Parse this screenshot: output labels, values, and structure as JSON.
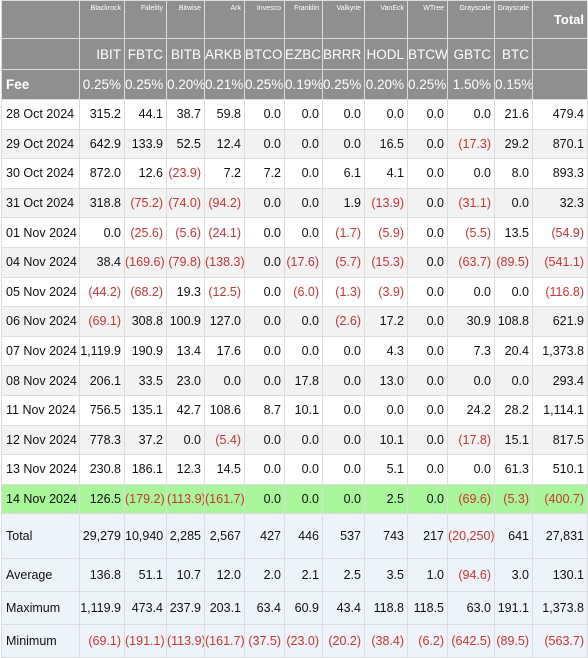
{
  "issuers": [
    "Blackrock",
    "Fidelity",
    "Bitwise",
    "Ark",
    "Invesco",
    "Franklin",
    "Valkyrie",
    "VanEck",
    "WTree",
    "Grayscale",
    "Grayscale"
  ],
  "total_label": "Total",
  "tickers": [
    "IBIT",
    "FBTC",
    "BITB",
    "ARKB",
    "BTCO",
    "EZBC",
    "BRRR",
    "HODL",
    "BTCW",
    "GBTC",
    "BTC"
  ],
  "fee": {
    "label": "Fee",
    "values": [
      "0.25%",
      "0.25%",
      "0.20%",
      "0.21%",
      "0.25%",
      "0.19%",
      "0.25%",
      "0.20%",
      "0.25%",
      "1.50%",
      "0.15%"
    ]
  },
  "rows": [
    {
      "date": "28 Oct 2024",
      "values": [
        "315.2",
        "44.1",
        "38.7",
        "59.8",
        "0.0",
        "0.0",
        "0.0",
        "0.0",
        "0.0",
        "0.0",
        "21.6",
        "479.4"
      ]
    },
    {
      "date": "29 Oct 2024",
      "values": [
        "642.9",
        "133.9",
        "52.5",
        "12.4",
        "0.0",
        "0.0",
        "0.0",
        "16.5",
        "0.0",
        "(17.3)",
        "29.2",
        "870.1"
      ]
    },
    {
      "date": "30 Oct 2024",
      "values": [
        "872.0",
        "12.6",
        "(23.9)",
        "7.2",
        "7.2",
        "0.0",
        "6.1",
        "4.1",
        "0.0",
        "0.0",
        "8.0",
        "893.3"
      ]
    },
    {
      "date": "31 Oct 2024",
      "values": [
        "318.8",
        "(75.2)",
        "(74.0)",
        "(94.2)",
        "0.0",
        "0.0",
        "1.9",
        "(13.9)",
        "0.0",
        "(31.1)",
        "0.0",
        "32.3"
      ]
    },
    {
      "date": "01 Nov 2024",
      "values": [
        "0.0",
        "(25.6)",
        "(5.6)",
        "(24.1)",
        "0.0",
        "0.0",
        "(1.7)",
        "(5.9)",
        "0.0",
        "(5.5)",
        "13.5",
        "(54.9)"
      ]
    },
    {
      "date": "04 Nov 2024",
      "values": [
        "38.4",
        "(169.6)",
        "(79.8)",
        "(138.3)",
        "0.0",
        "(17.6)",
        "(5.7)",
        "(15.3)",
        "0.0",
        "(63.7)",
        "(89.5)",
        "(541.1)"
      ]
    },
    {
      "date": "05 Nov 2024",
      "values": [
        "(44.2)",
        "(68.2)",
        "19.3",
        "(12.5)",
        "0.0",
        "(6.0)",
        "(1.3)",
        "(3.9)",
        "0.0",
        "0.0",
        "0.0",
        "(116.8)"
      ]
    },
    {
      "date": "06 Nov 2024",
      "values": [
        "(69.1)",
        "308.8",
        "100.9",
        "127.0",
        "0.0",
        "0.0",
        "(2.6)",
        "17.2",
        "0.0",
        "30.9",
        "108.8",
        "621.9"
      ]
    },
    {
      "date": "07 Nov 2024",
      "values": [
        "1,119.9",
        "190.9",
        "13.4",
        "17.6",
        "0.0",
        "0.0",
        "0.0",
        "4.3",
        "0.0",
        "7.3",
        "20.4",
        "1,373.8"
      ]
    },
    {
      "date": "08 Nov 2024",
      "values": [
        "206.1",
        "33.5",
        "23.0",
        "0.0",
        "0.0",
        "17.8",
        "0.0",
        "13.0",
        "0.0",
        "0.0",
        "0.0",
        "293.4"
      ]
    },
    {
      "date": "11 Nov 2024",
      "values": [
        "756.5",
        "135.1",
        "42.7",
        "108.6",
        "8.7",
        "10.1",
        "0.0",
        "0.0",
        "0.0",
        "24.2",
        "28.2",
        "1,114.1"
      ]
    },
    {
      "date": "12 Nov 2024",
      "values": [
        "778.3",
        "37.2",
        "0.0",
        "(5.4)",
        "0.0",
        "0.0",
        "0.0",
        "10.1",
        "0.0",
        "(17.8)",
        "15.1",
        "817.5"
      ]
    },
    {
      "date": "13 Nov 2024",
      "values": [
        "230.8",
        "186.1",
        "12.3",
        "14.5",
        "0.0",
        "0.0",
        "0.0",
        "5.1",
        "0.0",
        "0.0",
        "61.3",
        "510.1"
      ]
    },
    {
      "date": "14 Nov 2024",
      "values": [
        "126.5",
        "(179.2)",
        "(113.9)",
        "(161.7)",
        "0.0",
        "0.0",
        "0.0",
        "2.5",
        "0.0",
        "(69.6)",
        "(5.3)",
        "(400.7)"
      ]
    }
  ],
  "summary": [
    {
      "label": "Total",
      "values": [
        "29,279",
        "10,940",
        "2,285",
        "2,567",
        "427",
        "446",
        "537",
        "743",
        "217",
        "(20,250)",
        "641",
        "27,831"
      ]
    },
    {
      "label": "Average",
      "values": [
        "136.8",
        "51.1",
        "10.7",
        "12.0",
        "2.0",
        "2.1",
        "2.5",
        "3.5",
        "1.0",
        "(94.6)",
        "3.0",
        "130.1"
      ]
    },
    {
      "label": "Maximum",
      "values": [
        "1,119.9",
        "473.4",
        "237.9",
        "203.1",
        "63.4",
        "60.9",
        "43.4",
        "118.8",
        "118.5",
        "63.0",
        "191.1",
        "1,373.8"
      ]
    },
    {
      "label": "Minimum",
      "values": [
        "(69.1)",
        "(191.1)",
        "(113.9)",
        "(161.7)",
        "(37.5)",
        "(23.0)",
        "(20.2)",
        "(38.4)",
        "(6.2)",
        "(642.5)",
        "(89.5)",
        "(563.7)"
      ]
    }
  ],
  "colors": {
    "header_bg": "#8f8f8f",
    "negative": "#cc3333",
    "highlight": "#a9f59a",
    "summary_bg": "#eef3f9"
  }
}
